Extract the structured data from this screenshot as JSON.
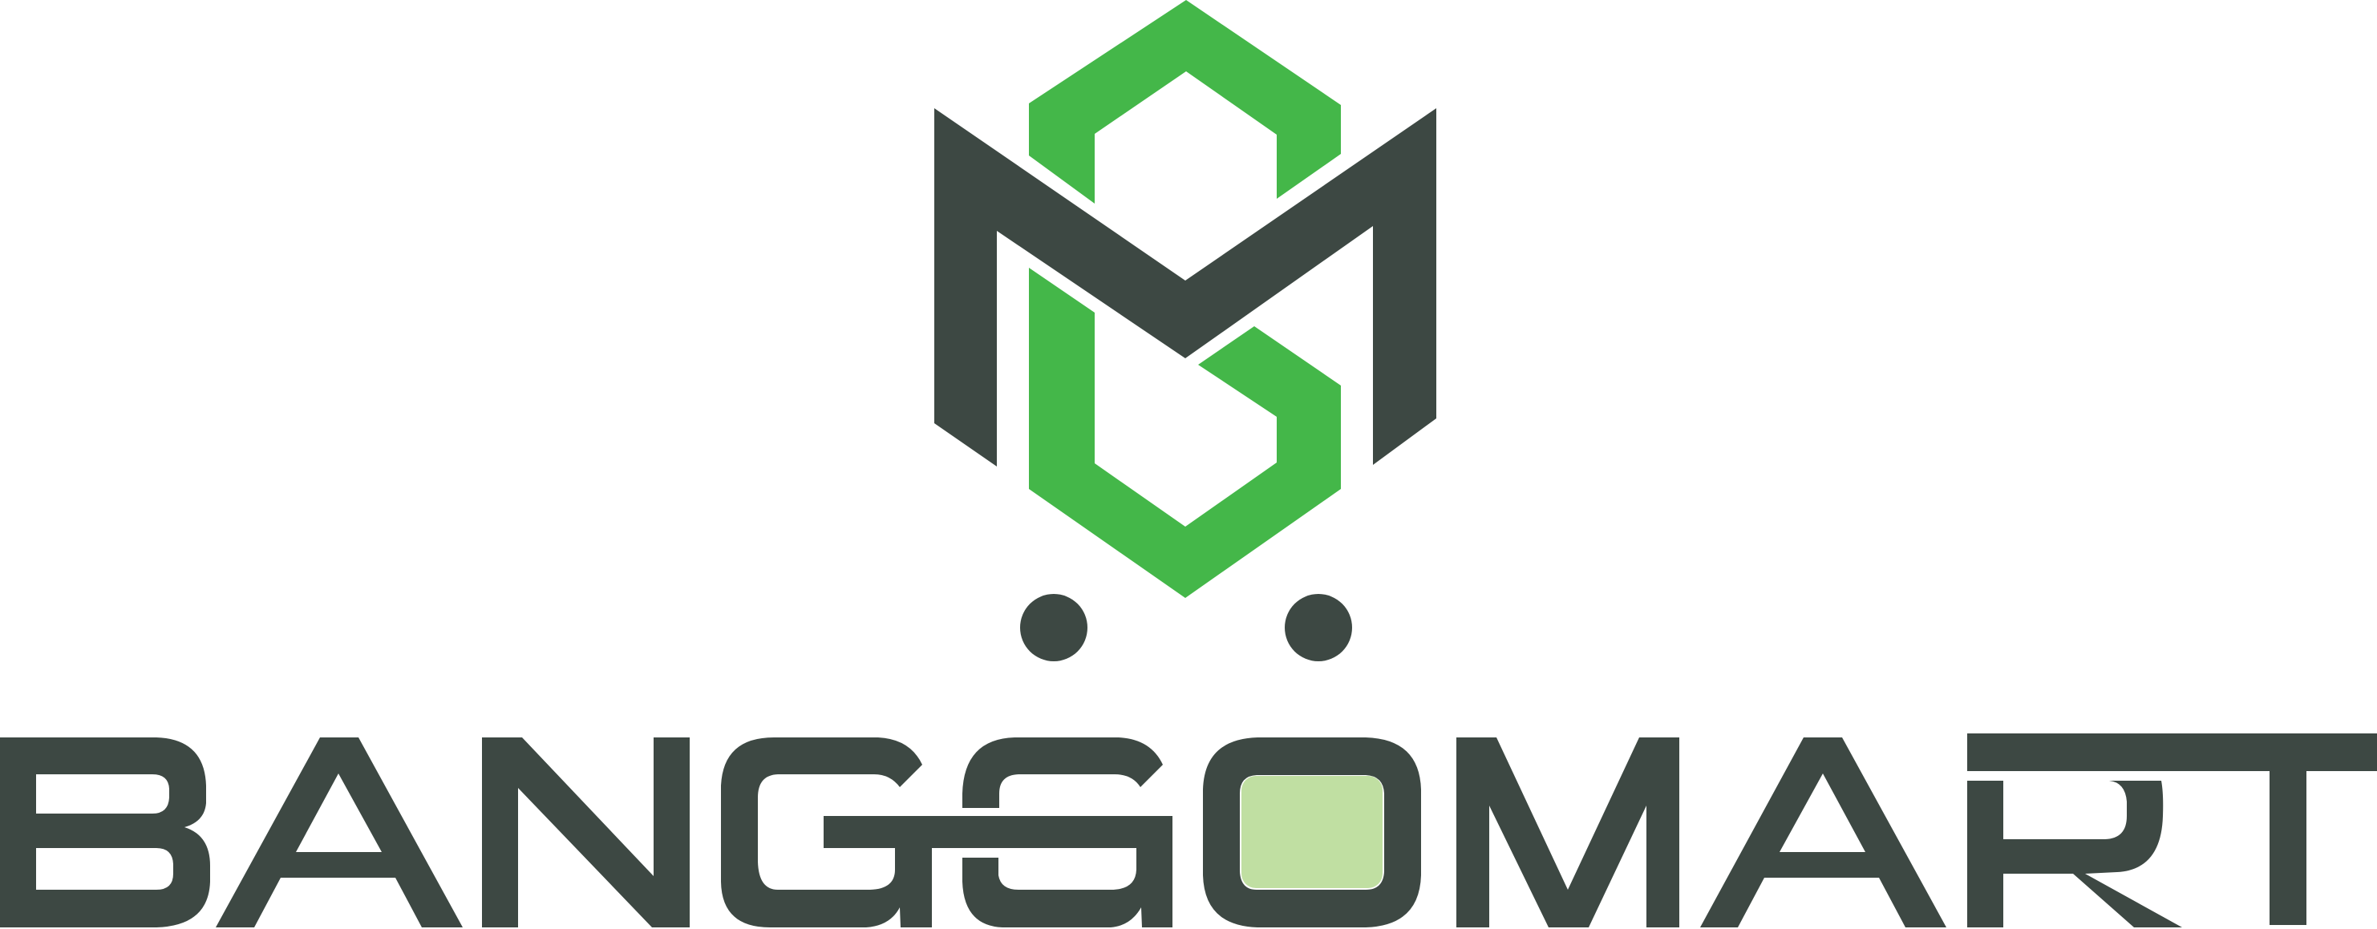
{
  "brand": {
    "name": "BANGGOMART",
    "letters": [
      "B",
      "A",
      "N",
      "G",
      "G",
      "O",
      "M",
      "A",
      "R",
      "T"
    ]
  },
  "colors": {
    "dark": "#3d4843",
    "green": "#44b749",
    "light_green": "#c0dfa2",
    "background": "#ffffff"
  }
}
